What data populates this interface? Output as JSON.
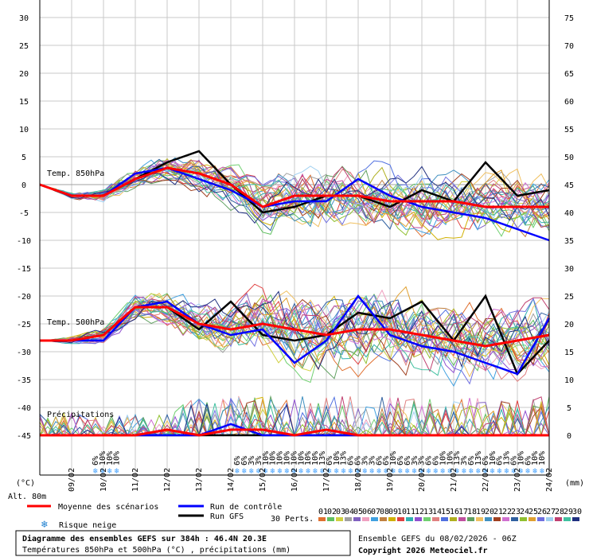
{
  "chart_data": {
    "type": "line",
    "title": "Diagramme des ensembles GEFS sur 384h : 46.4N 20.3E",
    "subtitle": "Températures 850hPa et 500hPa (°C) , précipitations (mm)",
    "run_info": "Ensemble GEFS du 08/02/2026 - 06Z",
    "copyright": "Copyright 2026 Meteociel.fr",
    "altitude": "Alt. 80m",
    "left_axis": {
      "unit": "(°C)",
      "ticks": [
        "30",
        "25",
        "20",
        "15",
        "10",
        "5",
        "0",
        "-5",
        "-10",
        "-15",
        "-20",
        "-25",
        "-30",
        "-35",
        "-40",
        "-45"
      ],
      "ylim": [
        -45,
        30
      ]
    },
    "right_axis": {
      "unit": "(mm)",
      "ticks": [
        "75",
        "70",
        "65",
        "60",
        "55",
        "50",
        "45",
        "40",
        "35",
        "30",
        "25",
        "20",
        "15",
        "10",
        "5",
        "0"
      ]
    },
    "x_labels": [
      "09/02",
      "10/02",
      "11/02",
      "12/02",
      "13/02",
      "14/02",
      "15/02",
      "16/02",
      "17/02",
      "18/02",
      "19/02",
      "20/02",
      "21/02",
      "22/02",
      "23/02",
      "24/02"
    ],
    "panel_labels": {
      "t850": "Temp. 850hPa",
      "t500": "Temp. 500hPa",
      "precip": "Précipitations"
    },
    "legend": {
      "mean": "Moyenne des scénarios",
      "control": "Run de contrôle",
      "gfs": "Run GFS",
      "snow": "Risque neige",
      "perts": "30 Perts."
    },
    "member_numbers": [
      "01",
      "02",
      "03",
      "04",
      "05",
      "06",
      "07",
      "08",
      "09",
      "10",
      "11",
      "12",
      "13",
      "14",
      "15",
      "16",
      "17",
      "18",
      "19",
      "20",
      "21",
      "22",
      "23",
      "24",
      "25",
      "26",
      "27",
      "28",
      "29",
      "30"
    ],
    "member_colors": [
      "#e07030",
      "#60c060",
      "#d0d040",
      "#a0a0a0",
      "#8060c0",
      "#f0a0c0",
      "#40a0e0",
      "#c08040",
      "#d0b000",
      "#e04040",
      "#30b0b0",
      "#9050d0",
      "#70d070",
      "#e08080",
      "#5070e0",
      "#b0b020",
      "#c050a0",
      "#60a060",
      "#f0c060",
      "#4090c0",
      "#a04020",
      "#d070d0",
      "#3060a0",
      "#90c030",
      "#e0a030",
      "#7070e0",
      "#a0d0f0",
      "#c04070",
      "#40c0a0",
      "#203080"
    ],
    "snow_risk": [
      {
        "h": 0,
        "p": "6%"
      },
      {
        "h": 6,
        "p": "10%"
      },
      {
        "h": 12,
        "p": "10%"
      },
      {
        "h": 18,
        "p": "10%"
      },
      {
        "h": 120,
        "p": "6%"
      },
      {
        "h": 126,
        "p": "6%"
      },
      {
        "h": 132,
        "p": "3%"
      },
      {
        "h": 138,
        "p": "3%"
      },
      {
        "h": 144,
        "p": "10%"
      },
      {
        "h": 150,
        "p": "10%"
      },
      {
        "h": 156,
        "p": "10%"
      },
      {
        "h": 162,
        "p": "10%"
      },
      {
        "h": 168,
        "p": "10%"
      },
      {
        "h": 174,
        "p": "10%"
      },
      {
        "h": 180,
        "p": "10%"
      },
      {
        "h": 186,
        "p": "10%"
      },
      {
        "h": 192,
        "p": "13%"
      },
      {
        "h": 198,
        "p": "6%"
      },
      {
        "h": 204,
        "p": "10%"
      },
      {
        "h": 210,
        "p": "13%"
      },
      {
        "h": 216,
        "p": "6%"
      },
      {
        "h": 222,
        "p": "6%"
      },
      {
        "h": 228,
        "p": "3%"
      },
      {
        "h": 234,
        "p": "3%"
      },
      {
        "h": 240,
        "p": "6%"
      },
      {
        "h": 246,
        "p": "6%"
      },
      {
        "h": 252,
        "p": "10%"
      },
      {
        "h": 258,
        "p": "6%"
      },
      {
        "h": 264,
        "p": "6%"
      },
      {
        "h": 270,
        "p": "3%"
      },
      {
        "h": 276,
        "p": "3%"
      },
      {
        "h": 282,
        "p": "6%"
      },
      {
        "h": 288,
        "p": "6%"
      },
      {
        "h": 294,
        "p": "10%"
      },
      {
        "h": 300,
        "p": "10%"
      },
      {
        "h": 306,
        "p": "13%"
      },
      {
        "h": 312,
        "p": "3%"
      },
      {
        "h": 318,
        "p": "6%"
      },
      {
        "h": 324,
        "p": "13%"
      },
      {
        "h": 330,
        "p": "6%"
      },
      {
        "h": 336,
        "p": "10%"
      },
      {
        "h": 342,
        "p": "6%"
      },
      {
        "h": 348,
        "p": "13%"
      },
      {
        "h": 354,
        "p": "6%"
      },
      {
        "h": 360,
        "p": "10%"
      },
      {
        "h": 366,
        "p": "6%"
      },
      {
        "h": 372,
        "p": "10%"
      },
      {
        "h": 378,
        "p": "10%"
      }
    ],
    "series": [
      {
        "name": "Moyenne des scénarios",
        "x": [
          0,
          24,
          48,
          72,
          96,
          120,
          144,
          168,
          192,
          216,
          240,
          264,
          288,
          312,
          336,
          360,
          384
        ],
        "t850": [
          0,
          -2,
          -2,
          1,
          3,
          2,
          0,
          -4,
          -2,
          -2,
          -2,
          -3,
          -3,
          -3,
          -4,
          -4,
          -4
        ],
        "t500": [
          -28,
          -28,
          -27,
          -22,
          -22,
          -25,
          -26,
          -25,
          -26,
          -27,
          -26,
          -26,
          -27,
          -28,
          -29,
          -28,
          -27
        ],
        "precip": [
          0,
          0,
          0,
          0,
          1,
          0,
          1,
          1,
          0,
          1,
          0,
          0,
          0,
          0,
          0,
          0,
          0
        ]
      },
      {
        "name": "Run de contrôle",
        "x": [
          0,
          24,
          48,
          72,
          96,
          120,
          144,
          168,
          192,
          216,
          240,
          264,
          288,
          312,
          336,
          360,
          384
        ],
        "t850": [
          0,
          -2,
          -2,
          2,
          3,
          1,
          -1,
          -4,
          -3,
          -3,
          1,
          -2,
          -4,
          -5,
          -6,
          -8,
          -10
        ],
        "t500": [
          -28,
          -28,
          -28,
          -22,
          -21,
          -25,
          -27,
          -26,
          -32,
          -28,
          -20,
          -27,
          -29,
          -30,
          -32,
          -34,
          -24
        ],
        "precip": [
          0,
          0,
          0,
          0,
          0,
          0,
          2,
          0,
          0,
          0,
          0,
          0,
          0,
          0,
          0,
          0,
          0
        ]
      },
      {
        "name": "Run GFS",
        "x": [
          0,
          24,
          48,
          72,
          96,
          120,
          144,
          168,
          192,
          216,
          240,
          264,
          288,
          312,
          336,
          360,
          384
        ],
        "t850": [
          0,
          -2,
          -2,
          1,
          4,
          6,
          0,
          -5,
          -4,
          -2,
          -2,
          -4,
          -1,
          -3,
          4,
          -2,
          -1
        ],
        "t500": [
          -28,
          -28,
          -27,
          -22,
          -22,
          -26,
          -21,
          -27,
          -28,
          -27,
          -23,
          -24,
          -21,
          -28,
          -20,
          -34,
          -28
        ],
        "precip": [
          0,
          0,
          0,
          0,
          0,
          0,
          0,
          0,
          0,
          0,
          0,
          0,
          0,
          0,
          0,
          0,
          0
        ]
      }
    ]
  }
}
